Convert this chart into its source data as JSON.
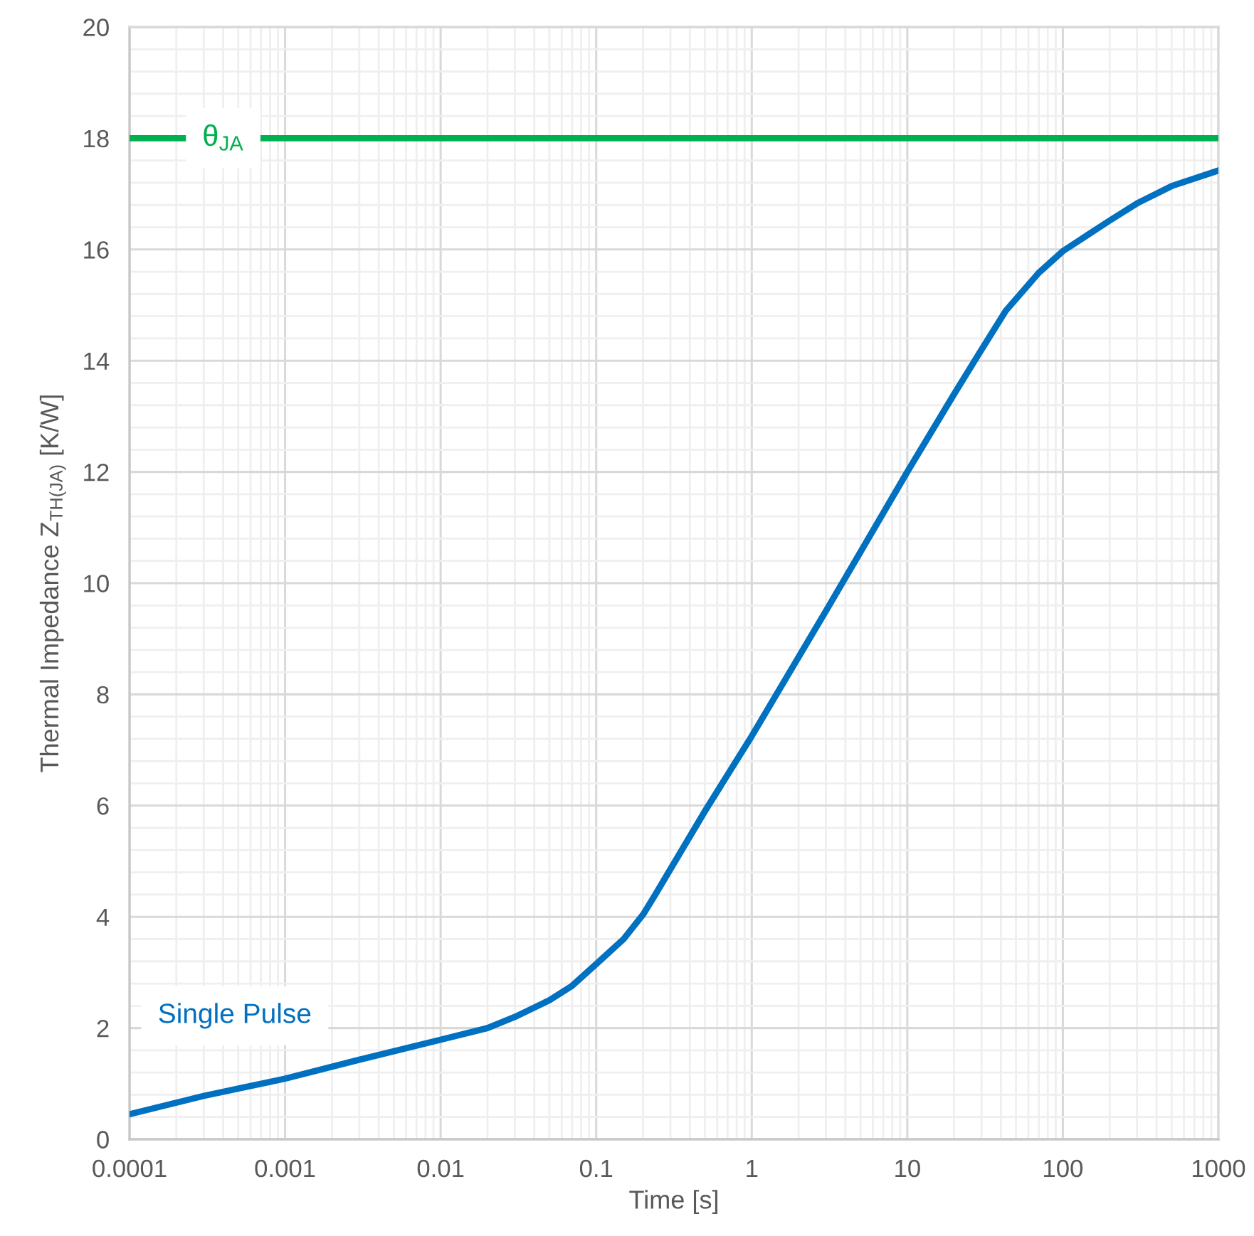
{
  "chart_data": {
    "type": "line",
    "xlabel": "Time [s]",
    "ylabel": "Thermal Impedance Z$_{TH(JA)}$ [K/W]",
    "log": "x",
    "xlim": [
      0.0001,
      1000
    ],
    "xticks": [
      0.0001,
      0.001,
      0.01,
      0.1,
      1,
      10,
      100,
      1000
    ],
    "ylim": [
      0,
      20
    ],
    "yticks": [
      0,
      2,
      4,
      6,
      8,
      10,
      12,
      14,
      16,
      18,
      20
    ],
    "grid": true,
    "line_style": "solid",
    "series": [
      {
        "name": "Single Pulse",
        "color": "#0070c0",
        "x": [
          0.0001,
          0.0003,
          0.001,
          0.003,
          0.01,
          0.02,
          0.03,
          0.05,
          0.07,
          0.1,
          0.15,
          0.2,
          0.24,
          0.5,
          1,
          3,
          10,
          20,
          30,
          43,
          70,
          100,
          200,
          300,
          500,
          1000
        ],
        "values": [
          0.45,
          0.78,
          1.09,
          1.43,
          1.79,
          2.0,
          2.2,
          2.5,
          2.76,
          3.15,
          3.6,
          4.04,
          4.4,
          5.9,
          7.25,
          9.5,
          12.0,
          13.4,
          14.2,
          14.9,
          15.58,
          15.97,
          16.52,
          16.83,
          17.14,
          17.42
        ]
      }
    ],
    "ref_lines": [
      {
        "axis": "y",
        "value": 18,
        "label": "θ$_{JA}$",
        "color": "#00b050"
      }
    ]
  }
}
